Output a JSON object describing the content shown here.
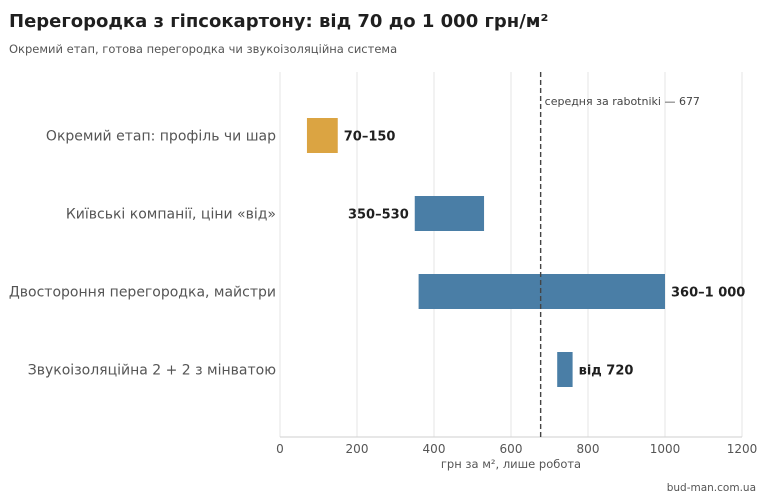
{
  "title": "Перегородка з гіпсокартону: від 70 до 1 000 грн/м²",
  "subtitle": "Окремий етап, готова перегородка чи звукоізоляційна система",
  "source": "bud-man.com.ua",
  "chart_data": {
    "type": "bar",
    "orientation": "horizontal",
    "subtype": "range",
    "categories": [
      "Окремий етап: профіль чи шар",
      "Київські компанії, ціни «від»",
      "Двостороння перегородка, майстри",
      "Звукоізоляційна 2 + 2 з мінватою"
    ],
    "ranges": [
      {
        "start": 70,
        "end": 150,
        "label": "70–150",
        "color": "#dba442",
        "label_side": "right"
      },
      {
        "start": 350,
        "end": 530,
        "label": "350–530",
        "color": "#4a7ea6",
        "label_side": "left"
      },
      {
        "start": 360,
        "end": 1000,
        "label": "360–1 000",
        "color": "#4a7ea6",
        "label_side": "right"
      },
      {
        "start": 720,
        "end": 760,
        "label": "від 720",
        "color": "#4a7ea6",
        "label_side": "right"
      }
    ],
    "xlabel": "грн за м², лише робота",
    "xlim": [
      0,
      1200
    ],
    "xticks": [
      0,
      200,
      400,
      600,
      800,
      1000,
      1200
    ],
    "grid": "vertical",
    "reference_line": {
      "value": 677,
      "label": "середня за rabotniki — 677",
      "style": "dashed"
    }
  }
}
